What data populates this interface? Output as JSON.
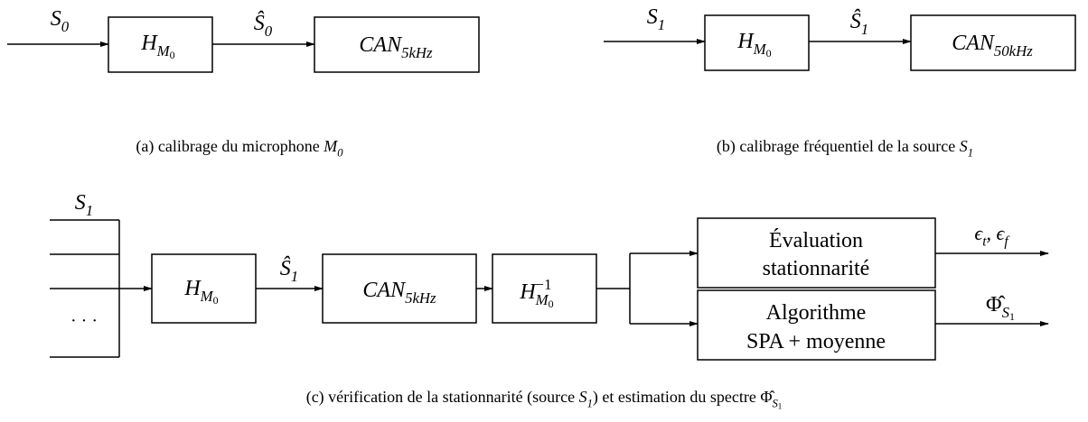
{
  "diagram_a": {
    "input": [
      {
        "base": "S",
        "sub": "0"
      }
    ],
    "block_h": [
      {
        "base": "H",
        "sub": "M",
        "subsub": "0"
      }
    ],
    "signal": [
      {
        "base": "Ŝ",
        "sub": "0"
      }
    ],
    "block_can": [
      {
        "base": "CAN",
        "sub": "5kHz"
      }
    ],
    "caption": [
      {
        "text": "(a) calibrage du microphone "
      },
      {
        "base": "M",
        "sub": "0"
      }
    ]
  },
  "diagram_b": {
    "input": [
      {
        "base": "S",
        "sub": "1"
      }
    ],
    "block_h": [
      {
        "base": "H",
        "sub": "M",
        "subsub": "0"
      }
    ],
    "signal": [
      {
        "base": "Ŝ",
        "sub": "1"
      }
    ],
    "block_can": [
      {
        "base": "CAN",
        "sub": "50kHz"
      }
    ],
    "caption": [
      {
        "text": "(b) calibrage fréquentiel de la source "
      },
      {
        "base": "S",
        "sub": "1"
      }
    ]
  },
  "diagram_c": {
    "input": [
      {
        "base": "S",
        "sub": "1"
      }
    ],
    "ellipsis": "· · ·",
    "block_h": [
      {
        "base": "H",
        "sub": "M",
        "subsub": "0"
      }
    ],
    "signal": [
      {
        "base": "Ŝ",
        "sub": "1"
      }
    ],
    "block_can": [
      {
        "base": "CAN",
        "sub": "5kHz"
      }
    ],
    "block_h_inv": [
      {
        "base": "H",
        "sup": "−1",
        "sub": "M",
        "subsub": "0"
      }
    ],
    "eval_box": [
      "Évaluation",
      "stationnarité"
    ],
    "algo_box": [
      "Algorithme",
      "SPA + moyenne"
    ],
    "output_eval": [
      {
        "base": "ϵ",
        "sub": "t"
      },
      {
        "text": ", "
      },
      {
        "base": "ϵ",
        "sub": "f"
      }
    ],
    "output_algo": [
      {
        "base": "Φ̂",
        "roman": true,
        "sub": "S",
        "subsub": "1"
      }
    ],
    "caption": [
      {
        "text": "(c) vérification de la stationnarité (source "
      },
      {
        "base": "S",
        "sub": "1"
      },
      {
        "text": ") et estimation du spectre "
      },
      {
        "base": "Φ̂",
        "roman": true,
        "sub": "S",
        "subsub": "1"
      }
    ]
  }
}
